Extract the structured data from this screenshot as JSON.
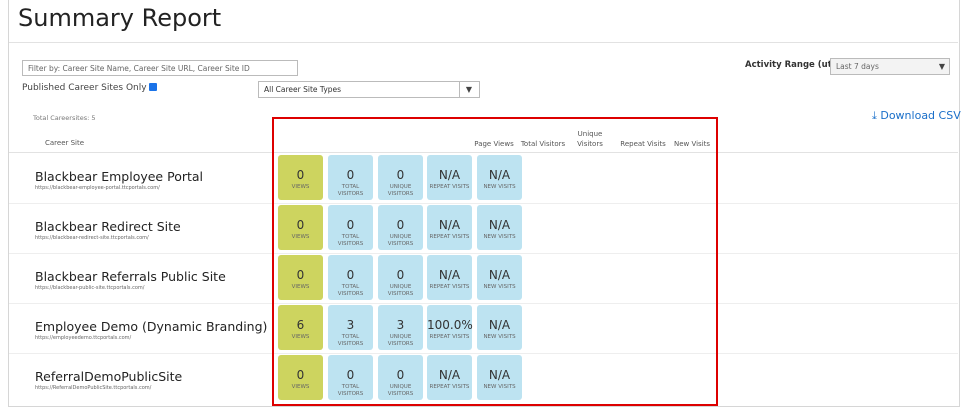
{
  "header": {
    "title": "Summary Report"
  },
  "filters": {
    "search_placeholder": "Filter by: Career Site Name, Career Site URL, Career Site ID",
    "activity_range_label": "Activity Range (utc):",
    "activity_range_value": "Last 7 days",
    "published_only_label": "Published Career Sites Only",
    "site_type_value": "All Career Site Types"
  },
  "summary": {
    "total_label": "Total Careersites: 5",
    "download": "Download CSV"
  },
  "table": {
    "columns": [
      "Career Site",
      "Page Views",
      "Total Visitors",
      "Unique Visitors",
      "Repeat Visits",
      "New Visits"
    ],
    "tile_labels": [
      "VIEWS",
      "TOTAL VISITORS",
      "UNIQUE VISITORS",
      "REPEAT VISITS",
      "NEW VISITS"
    ],
    "rows": [
      {
        "name": "Blackbear Employee Portal",
        "url": "https://blackbear-employee-portal.ttcportals.com/",
        "tiles": [
          "0",
          "0",
          "0",
          "N/A",
          "N/A"
        ]
      },
      {
        "name": "Blackbear Redirect Site",
        "url": "https://blackbear-redirect-site.ttcportals.com/",
        "tiles": [
          "0",
          "0",
          "0",
          "N/A",
          "N/A"
        ]
      },
      {
        "name": "Blackbear Referrals Public Site",
        "url": "https://blackbear-public-site.ttcportals.com/",
        "tiles": [
          "0",
          "0",
          "0",
          "N/A",
          "N/A"
        ]
      },
      {
        "name": "Employee Demo (Dynamic Branding)",
        "url": "https://employeedemo.ttcportals.com/",
        "tiles": [
          "6",
          "3",
          "3",
          "100.0%",
          "N/A"
        ]
      },
      {
        "name": "ReferralDemoPublicSite",
        "url": "https://ReferralDemoPublicSite.ttcportals.com/",
        "tiles": [
          "0",
          "0",
          "0",
          "N/A",
          "N/A"
        ]
      }
    ]
  }
}
